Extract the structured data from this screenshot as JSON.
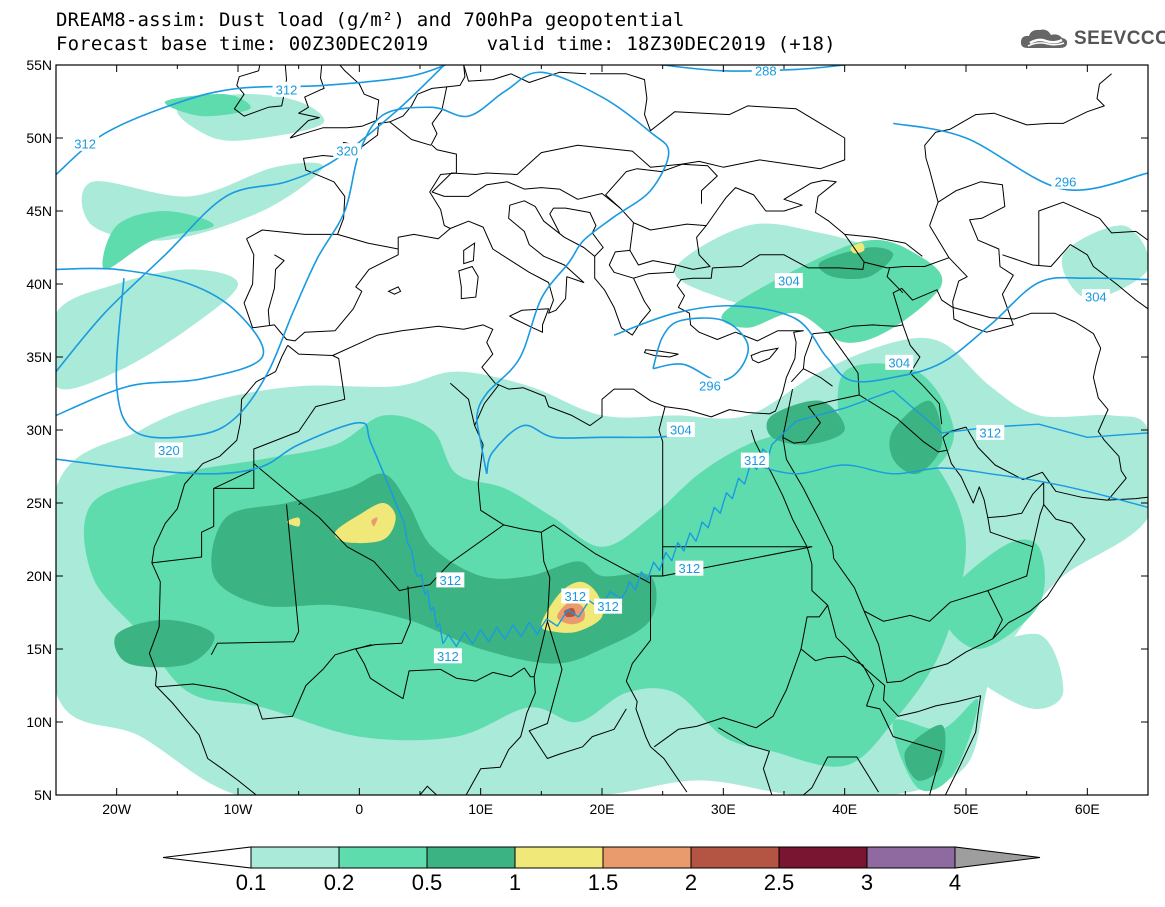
{
  "header": {
    "title_line1": "DREAM8-assim: Dust load (g/m²) and 700hPa geopotential",
    "forecast_base": "Forecast base time: 00Z30DEC2019",
    "valid_time": "valid time: 18Z30DEC2019 (+18)",
    "logo_text": "SEEVCCC",
    "logo_icon": "cloud-icon"
  },
  "map": {
    "lat_labels": [
      "55N",
      "50N",
      "45N",
      "40N",
      "35N",
      "30N",
      "25N",
      "20N",
      "15N",
      "10N",
      "5N"
    ],
    "lon_labels": [
      "20W",
      "10W",
      "0",
      "10E",
      "20E",
      "30E",
      "40E",
      "50E",
      "60E"
    ],
    "lat_range": [
      5,
      55
    ],
    "lon_range": [
      -25,
      65
    ],
    "contour_labels": [
      {
        "text": "312",
        "lon": -6.0,
        "lat": 53.3
      },
      {
        "text": "312",
        "lon": -22.6,
        "lat": 49.6
      },
      {
        "text": "320",
        "lon": -1.0,
        "lat": 49.1
      },
      {
        "text": "288",
        "lon": 33.5,
        "lat": 54.6
      },
      {
        "text": "296",
        "lon": 58.2,
        "lat": 47.0
      },
      {
        "text": "304",
        "lon": 60.7,
        "lat": 39.1
      },
      {
        "text": "304",
        "lon": 44.5,
        "lat": 34.6
      },
      {
        "text": "304",
        "lon": 35.4,
        "lat": 40.2
      },
      {
        "text": "296",
        "lon": 28.9,
        "lat": 33.0
      },
      {
        "text": "304",
        "lon": 26.5,
        "lat": 30.0
      },
      {
        "text": "312",
        "lon": 52.0,
        "lat": 29.8
      },
      {
        "text": "312",
        "lon": 32.6,
        "lat": 27.9
      },
      {
        "text": "320",
        "lon": -15.7,
        "lat": 28.6
      },
      {
        "text": "312",
        "lon": 7.5,
        "lat": 19.7
      },
      {
        "text": "312",
        "lon": 17.8,
        "lat": 18.6
      },
      {
        "text": "312",
        "lon": 20.5,
        "lat": 17.9
      },
      {
        "text": "312",
        "lon": 27.2,
        "lat": 20.5
      },
      {
        "text": "312",
        "lon": 7.3,
        "lat": 14.5
      }
    ]
  },
  "colorbar": {
    "labels": [
      "0.1",
      "0.2",
      "0.5",
      "1",
      "1.5",
      "2",
      "2.5",
      "3",
      "4"
    ],
    "colors": [
      "#a9ead9",
      "#5fdcae",
      "#3cb383",
      "#f0e878",
      "#ea9b6d",
      "#b45442",
      "#7a1531",
      "#8e6aa0"
    ],
    "under_color": "#ffffff",
    "over_color": "#9e9e9e"
  },
  "colors": {
    "contour": "#1a9ae0",
    "border": "#000000"
  }
}
